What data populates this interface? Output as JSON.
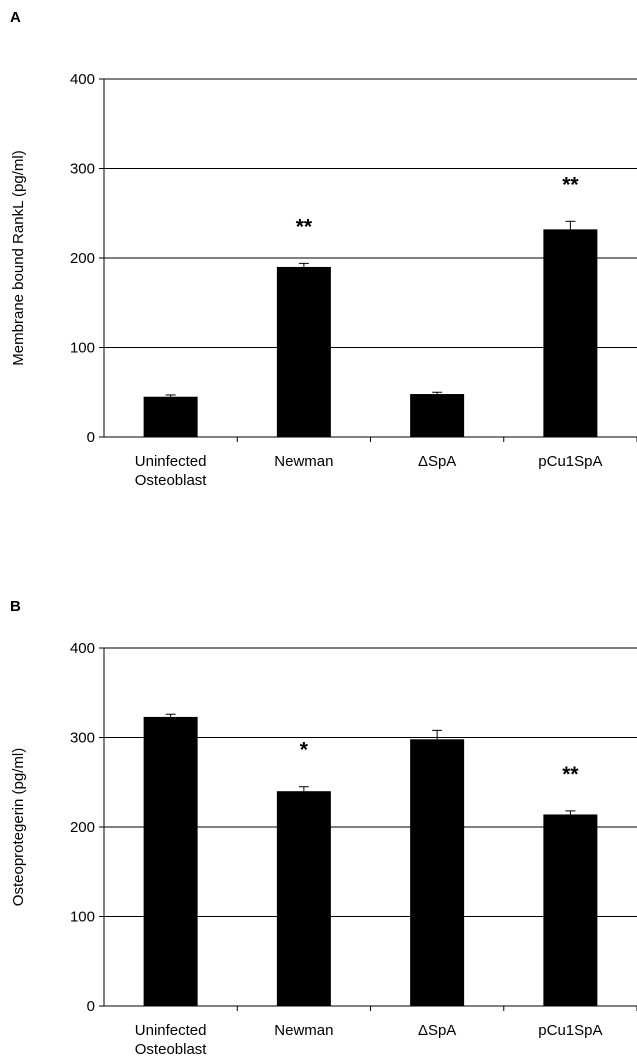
{
  "chart_data": [
    {
      "type": "bar",
      "panel_label": "A",
      "title": "",
      "xlabel": "",
      "ylabel": "Membrane bound RankL (pg/ml)",
      "ylim": [
        0,
        400
      ],
      "yticks": [
        "0",
        "100",
        "200",
        "300",
        "400"
      ],
      "grid": "horizontal",
      "categories": [
        [
          "Uninfected",
          "Osteoblast"
        ],
        [
          "Newman"
        ],
        [
          "ΔSpA"
        ],
        [
          "pCu1SpA"
        ]
      ],
      "values": [
        45,
        190,
        48,
        232
      ],
      "errors": [
        2,
        4,
        2,
        9
      ],
      "annotations": [
        "",
        "**",
        "",
        "**"
      ],
      "bar_color": "#000000"
    },
    {
      "type": "bar",
      "panel_label": "B",
      "title": "",
      "xlabel": "",
      "ylabel": "Osteoprotegerin (pg/ml)",
      "ylim": [
        0,
        400
      ],
      "yticks": [
        "0",
        "100",
        "200",
        "300",
        "400"
      ],
      "grid": "horizontal",
      "categories": [
        [
          "Uninfected",
          "Osteoblast"
        ],
        [
          "Newman"
        ],
        [
          "ΔSpA"
        ],
        [
          "pCu1SpA"
        ]
      ],
      "values": [
        323,
        240,
        298,
        214
      ],
      "errors": [
        3,
        5,
        10,
        4
      ],
      "annotations": [
        "",
        "*",
        "",
        "**"
      ],
      "bar_color": "#000000"
    }
  ]
}
